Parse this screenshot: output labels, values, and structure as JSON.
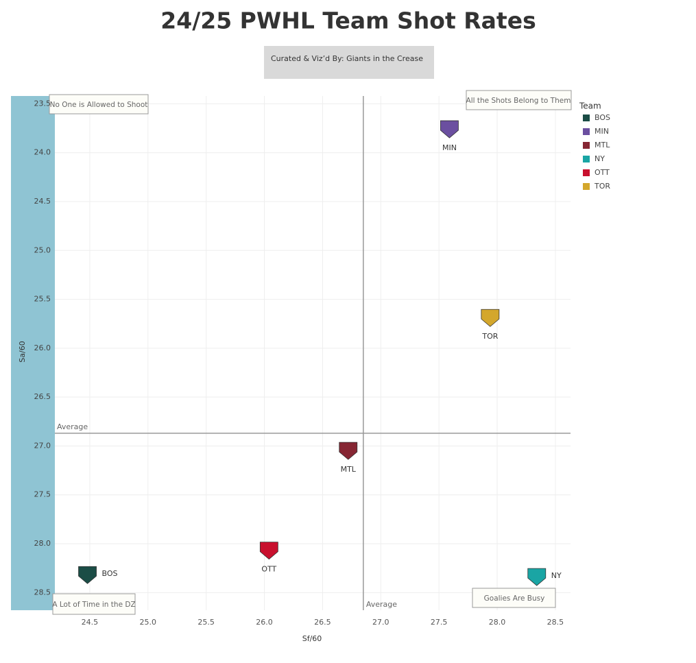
{
  "chart_data": {
    "type": "scatter",
    "title": "24/25 PWHL Team Shot Rates",
    "subtitle": "Curated & Viz’d By: Giants in the Crease",
    "x_label": "Sf/60",
    "y_label": "Sa/60",
    "legend_title": "Team",
    "categories": [
      "BOS",
      "MIN",
      "MTL",
      "NY",
      "OTT",
      "TOR"
    ],
    "x": [
      24.48,
      27.59,
      26.72,
      28.34,
      26.04,
      27.94
    ],
    "y": [
      28.31,
      23.75,
      27.04,
      28.33,
      28.06,
      25.68
    ],
    "colors": [
      "#1b4d46",
      "#6b4fa0",
      "#862633",
      "#1aa5a4",
      "#c8102e",
      "#d4a72c"
    ],
    "xlim": [
      24.2,
      28.63
    ],
    "ylim": [
      23.42,
      28.68
    ],
    "y_reversed": true,
    "xticks": [
      24.5,
      {
        "value": 25,
        "label": "25.0"
      },
      25.5,
      {
        "value": 26,
        "label": "26.0"
      },
      26.5,
      {
        "value": 27,
        "label": "27.0"
      },
      27.5,
      {
        "value": 28,
        "label": "28.0"
      },
      28.5
    ],
    "yticks": [
      23.5,
      {
        "value": 24,
        "label": "24.0"
      },
      24.5,
      {
        "value": 25,
        "label": "25.0"
      },
      25.5,
      {
        "value": 26,
        "label": "26.0"
      },
      26.5,
      {
        "value": 27,
        "label": "27.0"
      },
      27.5,
      {
        "value": 28,
        "label": "28.0"
      },
      28.5
    ],
    "grid": true,
    "average_x": 26.85,
    "average_y": 26.87,
    "average_label": "Average",
    "annotations": [
      "No One is Allowed to Shoot",
      "All the Shots Belong to Them",
      "A Lot of Time in the DZ",
      "Goalies Are Busy"
    ]
  }
}
